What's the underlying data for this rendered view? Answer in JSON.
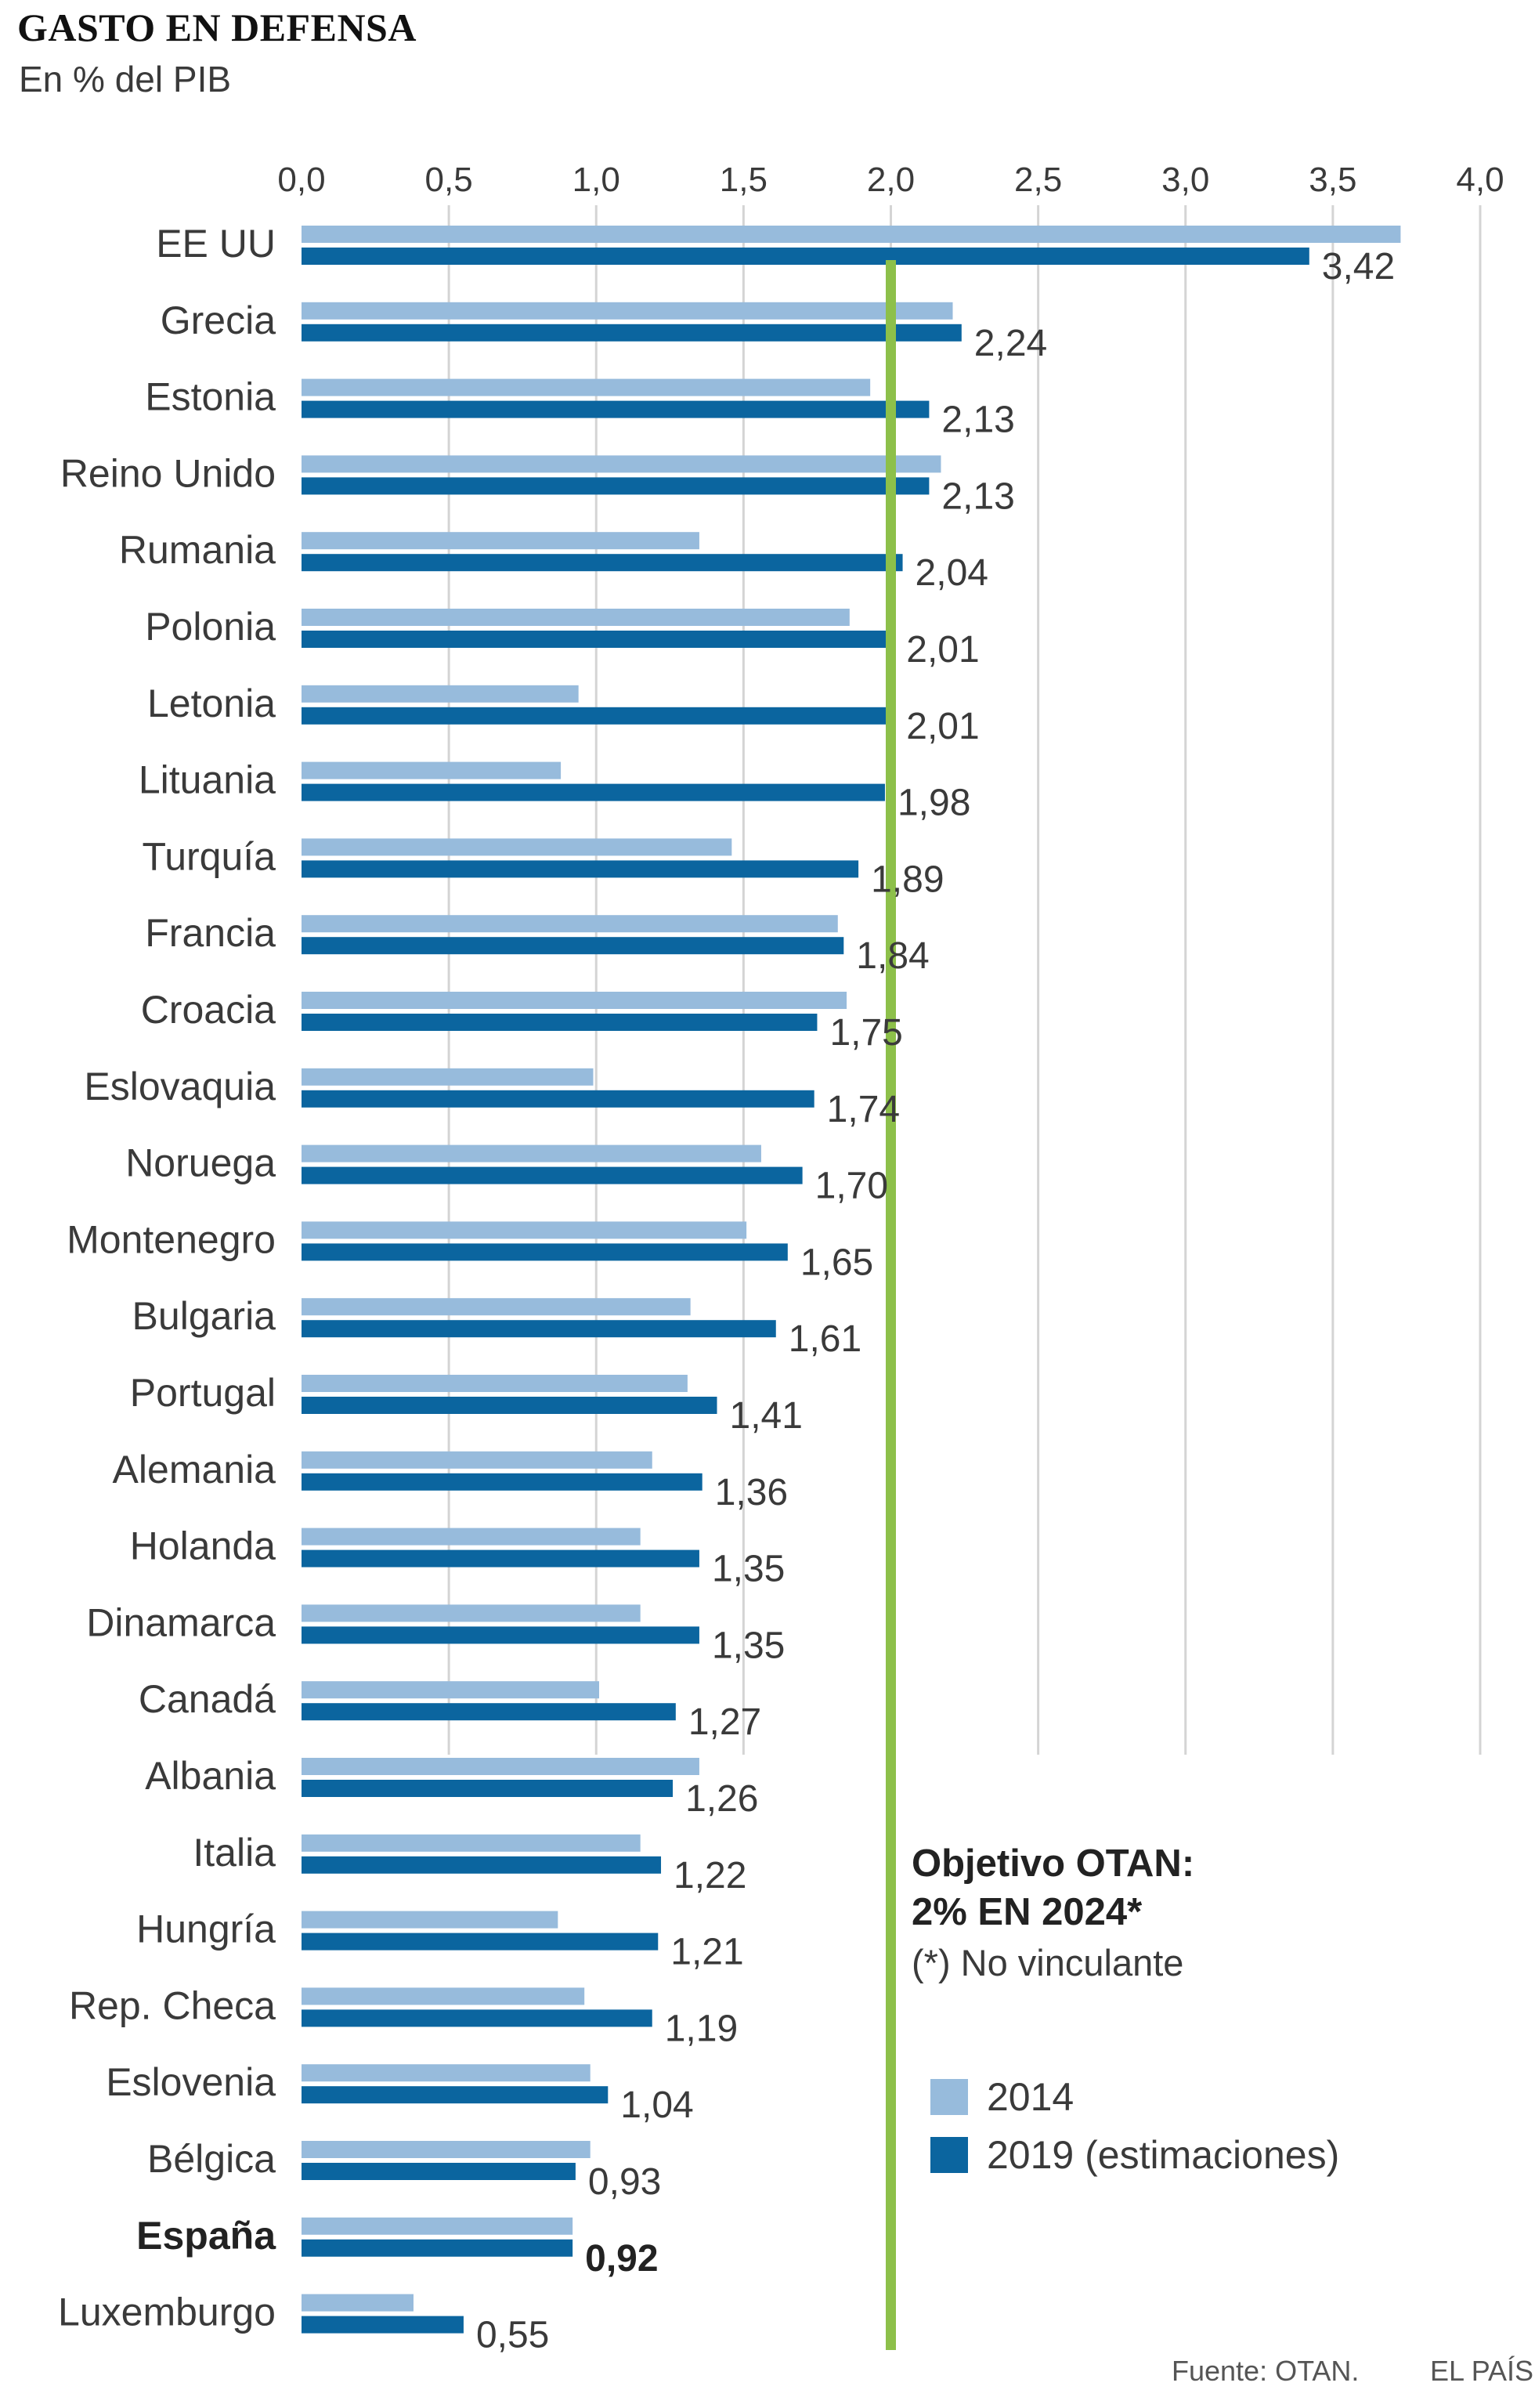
{
  "header": {
    "title": "GASTO EN DEFENSA",
    "subtitle": "En % del PIB"
  },
  "chart_data": {
    "type": "bar",
    "orientation": "horizontal",
    "title": "GASTO EN DEFENSA",
    "subtitle": "En % del PIB",
    "xlim": [
      0,
      4.0
    ],
    "x_ticks": [
      "0,0",
      "0,5",
      "1,0",
      "1,5",
      "2,0",
      "2,5",
      "3,0",
      "3,5",
      "4,0"
    ],
    "grid": true,
    "reference_line": {
      "value": 2.0,
      "color": "#8dc04a"
    },
    "categories": [
      "EE UU",
      "Grecia",
      "Estonia",
      "Reino Unido",
      "Rumania",
      "Polonia",
      "Letonia",
      "Lituania",
      "Turquía",
      "Francia",
      "Croacia",
      "Eslovaquia",
      "Noruega",
      "Montenegro",
      "Bulgaria",
      "Portugal",
      "Alemania",
      "Holanda",
      "Dinamarca",
      "Canadá",
      "Albania",
      "Italia",
      "Hungría",
      "Rep. Checa",
      "Eslovenia",
      "Bélgica",
      "España",
      "Luxemburgo"
    ],
    "highlight_category": "España",
    "series": [
      {
        "name": "2014",
        "color": "#97bbdc",
        "values": [
          3.73,
          2.21,
          1.93,
          2.17,
          1.35,
          1.86,
          0.94,
          0.88,
          1.46,
          1.82,
          1.85,
          0.99,
          1.56,
          1.51,
          1.32,
          1.31,
          1.19,
          1.15,
          1.15,
          1.01,
          1.35,
          1.15,
          0.87,
          0.96,
          0.98,
          0.98,
          0.92,
          0.38
        ]
      },
      {
        "name": "2019 (estimaciones)",
        "color": "#0b659f",
        "values": [
          3.42,
          2.24,
          2.13,
          2.13,
          2.04,
          2.01,
          2.01,
          1.98,
          1.89,
          1.84,
          1.75,
          1.74,
          1.7,
          1.65,
          1.61,
          1.41,
          1.36,
          1.35,
          1.35,
          1.27,
          1.26,
          1.22,
          1.21,
          1.19,
          1.04,
          0.93,
          0.92,
          0.55
        ],
        "labels": [
          "3,42",
          "2,24",
          "2,13",
          "2,13",
          "2,04",
          "2,01",
          "2,01",
          "1,98",
          "1,89",
          "1,84",
          "1,75",
          "1,74",
          "1,70",
          "1,65",
          "1,61",
          "1,41",
          "1,36",
          "1,35",
          "1,35",
          "1,27",
          "1,26",
          "1,22",
          "1,21",
          "1,19",
          "1,04",
          "0,93",
          "0,92",
          "0,55"
        ]
      }
    ],
    "legend_position": "bottom-right"
  },
  "annotation": {
    "line1": "Objetivo OTAN:",
    "line2": "2% EN 2024*",
    "note": "(*) No vinculante"
  },
  "legend": {
    "items": [
      {
        "label": "2014",
        "color": "#97bbdc"
      },
      {
        "label": "2019 (estimaciones)",
        "color": "#0b659f"
      }
    ]
  },
  "footer": {
    "source": "Fuente: OTAN.",
    "brand": "EL PAÍS"
  }
}
